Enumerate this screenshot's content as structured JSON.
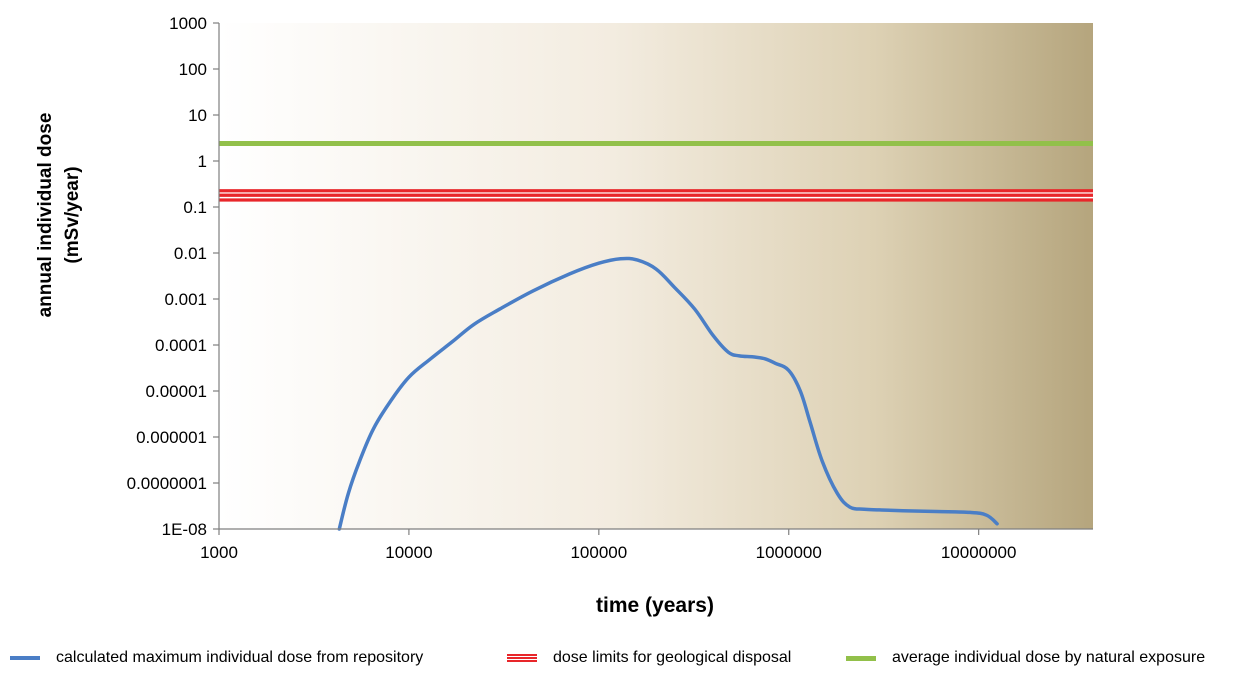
{
  "chart_data": {
    "type": "line",
    "title": "",
    "xlabel": "time (years)",
    "ylabel_line1": "annual individual dose",
    "ylabel_line2": "(mSv/year)",
    "xscale": "log",
    "yscale": "log",
    "xlim": [
      1000,
      40000000
    ],
    "ylim": [
      1e-08,
      1000
    ],
    "x_ticks": [
      1000,
      10000,
      100000,
      1000000,
      10000000
    ],
    "x_tick_labels": [
      "1000",
      "10000",
      "100000",
      "1000000",
      "10000000"
    ],
    "y_ticks": [
      1e-08,
      1e-07,
      1e-06,
      1e-05,
      0.0001,
      0.001,
      0.01,
      0.1,
      1,
      10,
      100,
      1000
    ],
    "y_tick_labels": [
      "1E-08",
      "0.0000001",
      "0.000001",
      "0.00001",
      "0.0001",
      "0.001",
      "0.01",
      "0.1",
      "1",
      "10",
      "100",
      "1000"
    ],
    "grid": false,
    "legend_position": "bottom",
    "series": [
      {
        "name": "calculated maximum individual dose from repository",
        "color": "#4a7ec6",
        "style": "curve",
        "x": [
          4300,
          4800,
          5500,
          6500,
          8000,
          10000,
          13000,
          17000,
          22000,
          30000,
          45000,
          70000,
          100000,
          130000,
          160000,
          200000,
          250000,
          320000,
          400000,
          480000,
          550000,
          650000,
          750000,
          850000,
          1000000,
          1150000,
          1300000,
          1500000,
          1800000,
          2100000,
          2500000,
          3000000,
          4000000,
          6000000,
          9000000,
          11000000,
          12500000
        ],
        "y": [
          1e-08,
          6e-08,
          3e-07,
          1.5e-06,
          6e-06,
          2e-05,
          5e-05,
          0.00012,
          0.00028,
          0.0006,
          0.0015,
          0.0035,
          0.006,
          0.0075,
          0.007,
          0.0045,
          0.0018,
          0.0006,
          0.00016,
          7e-05,
          5.8e-05,
          5.5e-05,
          5e-05,
          4e-05,
          2.8e-05,
          1e-05,
          2e-06,
          3e-07,
          6e-08,
          3e-08,
          2.7e-08,
          2.6e-08,
          2.5e-08,
          2.4e-08,
          2.3e-08,
          2e-08,
          1.3e-08
        ]
      },
      {
        "name": "dose limits for geological disposal",
        "color": "#e8262a",
        "style": "band",
        "values": [
          0.2,
          0.16
        ]
      },
      {
        "name": "average individual dose by natural exposure",
        "color": "#92c04a",
        "style": "hline",
        "value": 2.4
      }
    ]
  }
}
